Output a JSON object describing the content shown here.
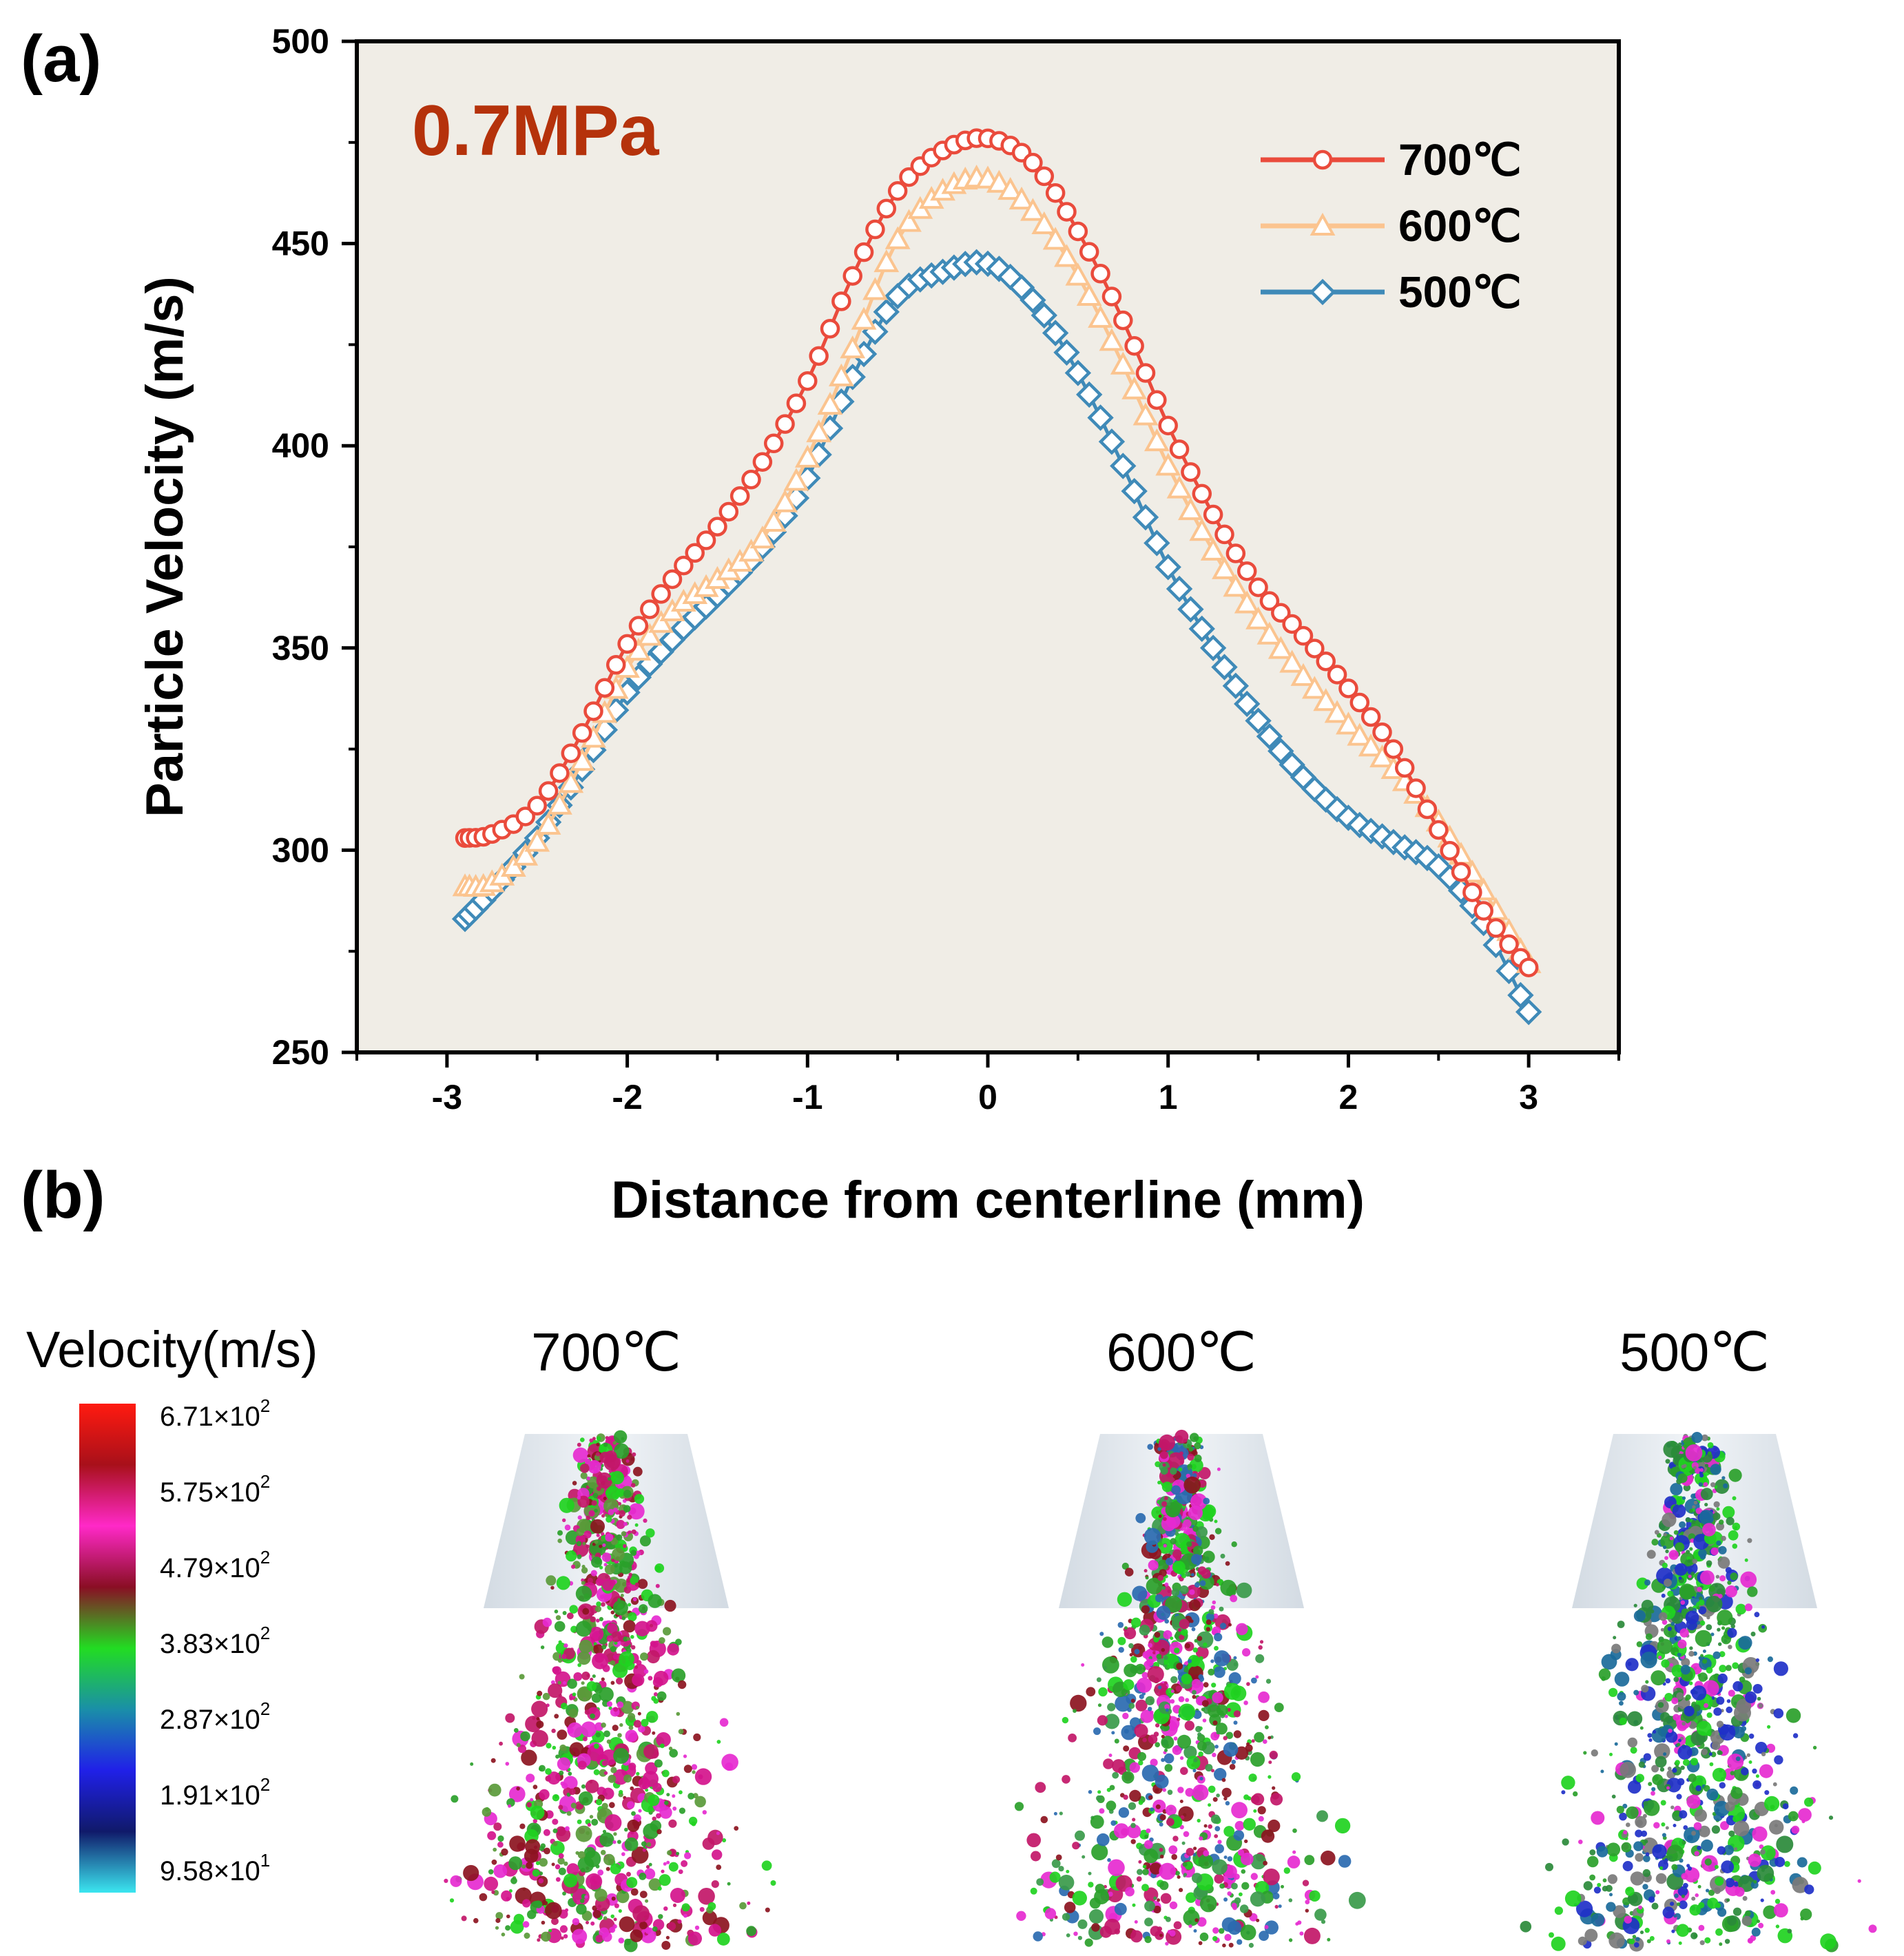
{
  "panel_a_label": "(a)",
  "panel_b_label": "(b)",
  "chart_data": {
    "type": "line",
    "title": "",
    "annotation": "0.7MPa",
    "annotation_color": "#b5320b",
    "xlabel": "Distance from centerline (mm)",
    "ylabel": "Particle Velocity (m/s)",
    "xlim": [
      -3.5,
      3.5
    ],
    "ylim": [
      250,
      500
    ],
    "xticks": [
      -3,
      -2,
      -1,
      0,
      1,
      2,
      3
    ],
    "xtick_labels": [
      "-3",
      "-2",
      "-1",
      "0",
      "1",
      "2",
      "3"
    ],
    "yticks": [
      250,
      300,
      350,
      400,
      450,
      500
    ],
    "ytick_labels": [
      "250",
      "300",
      "350",
      "400",
      "450",
      "500"
    ],
    "plot_background": "#f0ede6",
    "legend_position": "top-right",
    "series": [
      {
        "name": "700℃",
        "color": "#ea4b3c",
        "marker": "circle",
        "x": [
          -2.9,
          -2.75,
          -2.5,
          -2.25,
          -2.0,
          -1.75,
          -1.5,
          -1.25,
          -1.0,
          -0.75,
          -0.5,
          -0.25,
          0.0,
          0.25,
          0.5,
          0.75,
          1.0,
          1.25,
          1.5,
          1.75,
          2.0,
          2.25,
          2.5,
          2.75,
          3.0
        ],
        "y": [
          303,
          304,
          311,
          329,
          351,
          367,
          380,
          396,
          416,
          442,
          463,
          473,
          476,
          470,
          453,
          431,
          405,
          383,
          365,
          353,
          340,
          325,
          305,
          285,
          271
        ]
      },
      {
        "name": "600℃",
        "color": "#fbc48f",
        "marker": "triangle",
        "x": [
          -2.9,
          -2.75,
          -2.5,
          -2.25,
          -2.0,
          -1.75,
          -1.5,
          -1.25,
          -1.0,
          -0.75,
          -0.5,
          -0.25,
          0.0,
          0.25,
          0.5,
          0.75,
          1.0,
          1.25,
          1.5,
          1.75,
          2.0,
          2.25,
          2.5,
          2.75,
          3.0
        ],
        "y": [
          291,
          292,
          302,
          322,
          345,
          359,
          367,
          377,
          397,
          424,
          451,
          463,
          466,
          458,
          442,
          420,
          395,
          374,
          357,
          343,
          331,
          320,
          307,
          290,
          272
        ]
      },
      {
        "name": "500℃",
        "color": "#3f8ab8",
        "marker": "diamond",
        "x": [
          -2.9,
          -2.75,
          -2.5,
          -2.25,
          -2.0,
          -1.75,
          -1.5,
          -1.25,
          -1.0,
          -0.75,
          -0.5,
          -0.25,
          0.0,
          0.25,
          0.5,
          0.75,
          1.0,
          1.25,
          1.5,
          1.75,
          2.0,
          2.25,
          2.5,
          2.75,
          3.0
        ],
        "y": [
          283,
          290,
          303,
          320,
          339,
          352,
          363,
          375,
          392,
          417,
          437,
          443,
          445,
          436,
          418,
          395,
          370,
          350,
          332,
          318,
          308,
          302,
          296,
          282,
          260
        ]
      }
    ]
  },
  "panel_b": {
    "colorbar_title": "Velocity(m/s)",
    "colorbar_ticks": [
      "6.71×10",
      "5.75×10",
      "4.79×10",
      "3.83×10",
      "2.87×10",
      "1.91×10",
      "9.58×10"
    ],
    "colorbar_exponents": [
      "2",
      "2",
      "2",
      "2",
      "2",
      "2",
      "1"
    ],
    "colorbar_stops": [
      "#ff1a10",
      "#a8101a",
      "#ff29c8",
      "#8a0e24",
      "#22dc22",
      "#1a8fa8",
      "#2020e8",
      "#101a6a",
      "#3be6f0"
    ],
    "simulations": [
      {
        "title": "700℃",
        "colors": [
          "#c21768",
          "#e62ad0",
          "#2aa02a",
          "#8c1420",
          "#1fd21f",
          "#d4148c",
          "#5a9a3a"
        ]
      },
      {
        "title": "600℃",
        "colors": [
          "#2aa02a",
          "#e62ad0",
          "#8c1420",
          "#1fd21f",
          "#3a9a4a",
          "#c21768",
          "#2a6ab0"
        ]
      },
      {
        "title": "500℃",
        "colors": [
          "#2aa02a",
          "#1fd21f",
          "#2a8a3a",
          "#2030c8",
          "#1a6a9a",
          "#e62ad0",
          "#7a7a7a"
        ]
      }
    ]
  }
}
